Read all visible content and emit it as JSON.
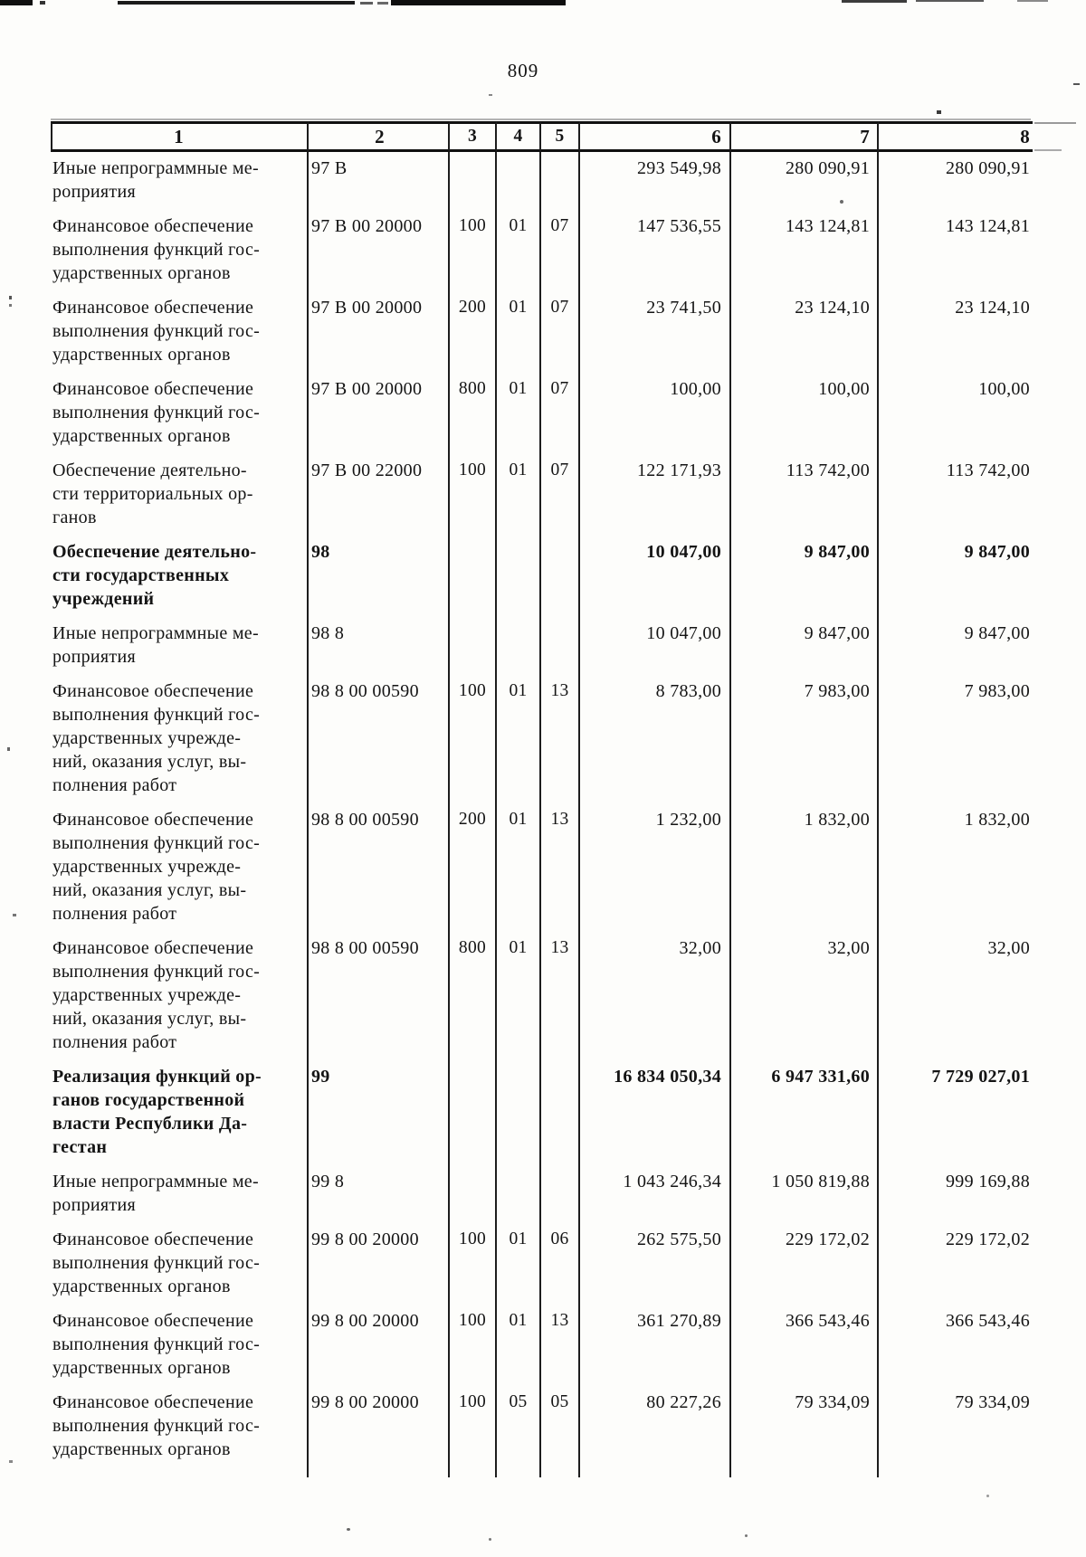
{
  "page": {
    "number": "809"
  },
  "table": {
    "header": [
      "1",
      "2",
      "3",
      "4",
      "5",
      "6",
      "7",
      "8"
    ],
    "rows": [
      {
        "name": "Иные непрограммные ме-\nроприятия",
        "code": "97 В",
        "vr": "",
        "section": "",
        "subsection": "",
        "amount1": "293 549,98",
        "amount2": "280 090,91",
        "amount3": "280 090,91",
        "bold": false
      },
      {
        "name": "Финансовое обеспечение\nвыполнения функций гос-\nударственных органов",
        "code": "97 В 00 20000",
        "vr": "100",
        "section": "01",
        "subsection": "07",
        "amount1": "147 536,55",
        "amount2": "143 124,81",
        "amount3": "143 124,81",
        "bold": false
      },
      {
        "name": "Финансовое обеспечение\nвыполнения функций гос-\nударственных органов",
        "code": "97 В 00 20000",
        "vr": "200",
        "section": "01",
        "subsection": "07",
        "amount1": "23 741,50",
        "amount2": "23 124,10",
        "amount3": "23 124,10",
        "bold": false
      },
      {
        "name": "Финансовое обеспечение\nвыполнения функций гос-\nударственных органов",
        "code": "97 В 00 20000",
        "vr": "800",
        "section": "01",
        "subsection": "07",
        "amount1": "100,00",
        "amount2": "100,00",
        "amount3": "100,00",
        "bold": false
      },
      {
        "name": "Обеспечение деятельно-\nсти территориальных ор-\nганов",
        "code": "97 В 00 22000",
        "vr": "100",
        "section": "01",
        "subsection": "07",
        "amount1": "122 171,93",
        "amount2": "113 742,00",
        "amount3": "113 742,00",
        "bold": false
      },
      {
        "name": "Обеспечение деятельно-\nсти государственных\nучреждений",
        "code": "98",
        "vr": "",
        "section": "",
        "subsection": "",
        "amount1": "10 047,00",
        "amount2": "9 847,00",
        "amount3": "9 847,00",
        "bold": true
      },
      {
        "name": "Иные непрограммные ме-\nроприятия",
        "code": "98 8",
        "vr": "",
        "section": "",
        "subsection": "",
        "amount1": "10 047,00",
        "amount2": "9 847,00",
        "amount3": "9 847,00",
        "bold": false
      },
      {
        "name": "Финансовое обеспечение\nвыполнения функций гос-\nударственных учрежде-\nний, оказания услуг, вы-\nполнения работ",
        "code": "98 8 00 00590",
        "vr": "100",
        "section": "01",
        "subsection": "13",
        "amount1": "8 783,00",
        "amount2": "7 983,00",
        "amount3": "7 983,00",
        "bold": false
      },
      {
        "name": "Финансовое обеспечение\nвыполнения функций гос-\nударственных учрежде-\nний, оказания услуг, вы-\nполнения работ",
        "code": "98 8 00 00590",
        "vr": "200",
        "section": "01",
        "subsection": "13",
        "amount1": "1 232,00",
        "amount2": "1 832,00",
        "amount3": "1 832,00",
        "bold": false
      },
      {
        "name": "Финансовое обеспечение\nвыполнения функций гос-\nударственных учрежде-\nний, оказания услуг, вы-\nполнения работ",
        "code": "98 8 00 00590",
        "vr": "800",
        "section": "01",
        "subsection": "13",
        "amount1": "32,00",
        "amount2": "32,00",
        "amount3": "32,00",
        "bold": false
      },
      {
        "name": "Реализация функций ор-\nганов государственной\nвласти Республики Да-\nгестан",
        "code": "99",
        "vr": "",
        "section": "",
        "subsection": "",
        "amount1": "16 834 050,34",
        "amount2": "6 947 331,60",
        "amount3": "7 729 027,01",
        "bold": true
      },
      {
        "name": "Иные непрограммные ме-\nроприятия",
        "code": "99 8",
        "vr": "",
        "section": "",
        "subsection": "",
        "amount1": "1 043 246,34",
        "amount2": "1 050 819,88",
        "amount3": "999 169,88",
        "bold": false
      },
      {
        "name": "Финансовое обеспечение\nвыполнения функций гос-\nударственных органов",
        "code": "99 8 00 20000",
        "vr": "100",
        "section": "01",
        "subsection": "06",
        "amount1": "262 575,50",
        "amount2": "229 172,02",
        "amount3": "229 172,02",
        "bold": false
      },
      {
        "name": "Финансовое обеспечение\nвыполнения функций гос-\nударственных органов",
        "code": "99 8 00 20000",
        "vr": "100",
        "section": "01",
        "subsection": "13",
        "amount1": "361 270,89",
        "amount2": "366 543,46",
        "amount3": "366 543,46",
        "bold": false
      },
      {
        "name": "Финансовое обеспечение\nвыполнения функций гос-\nударственных органов",
        "code": "99 8 00 20000",
        "vr": "100",
        "section": "05",
        "subsection": "05",
        "amount1": "80 227,26",
        "amount2": "79 334,09",
        "amount3": "79 334,09",
        "bold": false
      }
    ]
  }
}
